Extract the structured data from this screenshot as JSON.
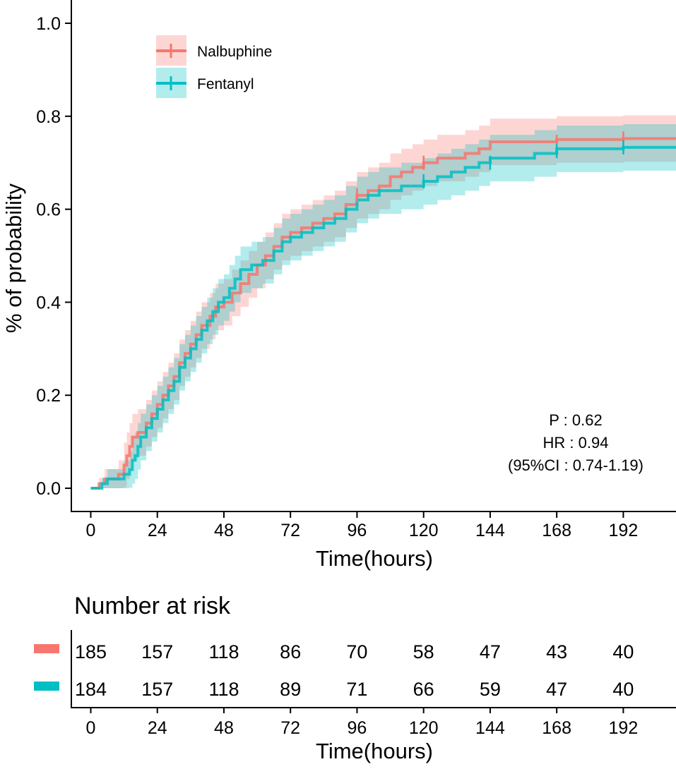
{
  "chart_data": [
    {
      "type": "line",
      "subtype": "kaplan-meier cumulative incidence",
      "xlabel": "Time(hours)",
      "ylabel": "% of probability",
      "xlim": [
        -7,
        211
      ],
      "ylim": [
        -0.05,
        1.05
      ],
      "x_ticks": [
        "0",
        "24",
        "48",
        "72",
        "96",
        "120",
        "144",
        "168",
        "192"
      ],
      "y_ticks": [
        "0.0",
        "0.2",
        "0.4",
        "0.6",
        "0.8",
        "1.0"
      ],
      "legend_position": "top-left",
      "series": [
        {
          "name": "Nalbuphine",
          "color": "#F8766D",
          "band_color": "#F8766D",
          "steps": [
            [
              0,
              0
            ],
            [
              3,
              0.01
            ],
            [
              5,
              0.02
            ],
            [
              8,
              0.02
            ],
            [
              10,
              0.03
            ],
            [
              12,
              0.05
            ],
            [
              13,
              0.07
            ],
            [
              14,
              0.09
            ],
            [
              15,
              0.11
            ],
            [
              17,
              0.12
            ],
            [
              20,
              0.14
            ],
            [
              22,
              0.16
            ],
            [
              24,
              0.18
            ],
            [
              26,
              0.2
            ],
            [
              28,
              0.22
            ],
            [
              30,
              0.24
            ],
            [
              32,
              0.27
            ],
            [
              34,
              0.29
            ],
            [
              36,
              0.31
            ],
            [
              38,
              0.33
            ],
            [
              40,
              0.35
            ],
            [
              43,
              0.37
            ],
            [
              45,
              0.39
            ],
            [
              48,
              0.4
            ],
            [
              51,
              0.42
            ],
            [
              54,
              0.44
            ],
            [
              57,
              0.46
            ],
            [
              60,
              0.48
            ],
            [
              63,
              0.5
            ],
            [
              66,
              0.52
            ],
            [
              69,
              0.54
            ],
            [
              72,
              0.55
            ],
            [
              76,
              0.56
            ],
            [
              80,
              0.57
            ],
            [
              84,
              0.58
            ],
            [
              88,
              0.59
            ],
            [
              92,
              0.61
            ],
            [
              96,
              0.63
            ],
            [
              100,
              0.64
            ],
            [
              104,
              0.65
            ],
            [
              108,
              0.67
            ],
            [
              112,
              0.68
            ],
            [
              116,
              0.69
            ],
            [
              120,
              0.7
            ],
            [
              125,
              0.71
            ],
            [
              130,
              0.71
            ],
            [
              135,
              0.72
            ],
            [
              140,
              0.73
            ],
            [
              144,
              0.745
            ],
            [
              168,
              0.75
            ],
            [
              192,
              0.752
            ],
            [
              211,
              0.752
            ]
          ],
          "band_half_width": 0.05,
          "censor_marks": [
            [
              96,
              0.63
            ],
            [
              120,
              0.7
            ],
            [
              168,
              0.745
            ],
            [
              192,
              0.752
            ]
          ],
          "at_risk": [
            185,
            157,
            118,
            86,
            70,
            58,
            47,
            43,
            40
          ]
        },
        {
          "name": "Fentanyl",
          "color": "#00BFC4",
          "band_color": "#00BFC4",
          "steps": [
            [
              0,
              0
            ],
            [
              4,
              0.01
            ],
            [
              6,
              0.02
            ],
            [
              9,
              0.02
            ],
            [
              12,
              0.03
            ],
            [
              14,
              0.04
            ],
            [
              15,
              0.06
            ],
            [
              16,
              0.07
            ],
            [
              17,
              0.09
            ],
            [
              18,
              0.11
            ],
            [
              20,
              0.13
            ],
            [
              22,
              0.15
            ],
            [
              24,
              0.17
            ],
            [
              26,
              0.19
            ],
            [
              28,
              0.21
            ],
            [
              30,
              0.23
            ],
            [
              32,
              0.26
            ],
            [
              34,
              0.28
            ],
            [
              36,
              0.3
            ],
            [
              38,
              0.32
            ],
            [
              40,
              0.34
            ],
            [
              42,
              0.36
            ],
            [
              44,
              0.38
            ],
            [
              46,
              0.4
            ],
            [
              48,
              0.41
            ],
            [
              50,
              0.43
            ],
            [
              52,
              0.45
            ],
            [
              54,
              0.47
            ],
            [
              58,
              0.48
            ],
            [
              62,
              0.49
            ],
            [
              66,
              0.51
            ],
            [
              69,
              0.53
            ],
            [
              72,
              0.54
            ],
            [
              76,
              0.55
            ],
            [
              80,
              0.56
            ],
            [
              84,
              0.57
            ],
            [
              88,
              0.58
            ],
            [
              92,
              0.6
            ],
            [
              96,
              0.62
            ],
            [
              100,
              0.63
            ],
            [
              104,
              0.64
            ],
            [
              108,
              0.64
            ],
            [
              112,
              0.65
            ],
            [
              116,
              0.65
            ],
            [
              120,
              0.66
            ],
            [
              125,
              0.67
            ],
            [
              130,
              0.68
            ],
            [
              135,
              0.69
            ],
            [
              140,
              0.7
            ],
            [
              144,
              0.71
            ],
            [
              150,
              0.71
            ],
            [
              160,
              0.72
            ],
            [
              168,
              0.73
            ],
            [
              192,
              0.733
            ],
            [
              211,
              0.733
            ]
          ],
          "band_half_width": 0.05,
          "censor_marks": [
            [
              120,
              0.66
            ],
            [
              144,
              0.7
            ],
            [
              168,
              0.725
            ],
            [
              192,
              0.733
            ]
          ],
          "at_risk": [
            184,
            157,
            118,
            89,
            71,
            66,
            59,
            47,
            40
          ]
        }
      ],
      "annotations": [
        "P : 0.62",
        "HR : 0.94",
        "(95%CI : 0.74-1.19)"
      ]
    },
    {
      "type": "table",
      "title": "Number at risk",
      "xlabel": "Time(hours)",
      "columns": [
        "0",
        "24",
        "48",
        "72",
        "96",
        "120",
        "144",
        "168",
        "192"
      ],
      "rows": [
        {
          "series": "Nalbuphine",
          "values": [
            "185",
            "157",
            "118",
            "86",
            "70",
            "58",
            "47",
            "43",
            "40"
          ]
        },
        {
          "series": "Fentanyl",
          "values": [
            "184",
            "157",
            "118",
            "89",
            "71",
            "66",
            "59",
            "47",
            "40"
          ]
        }
      ]
    }
  ]
}
